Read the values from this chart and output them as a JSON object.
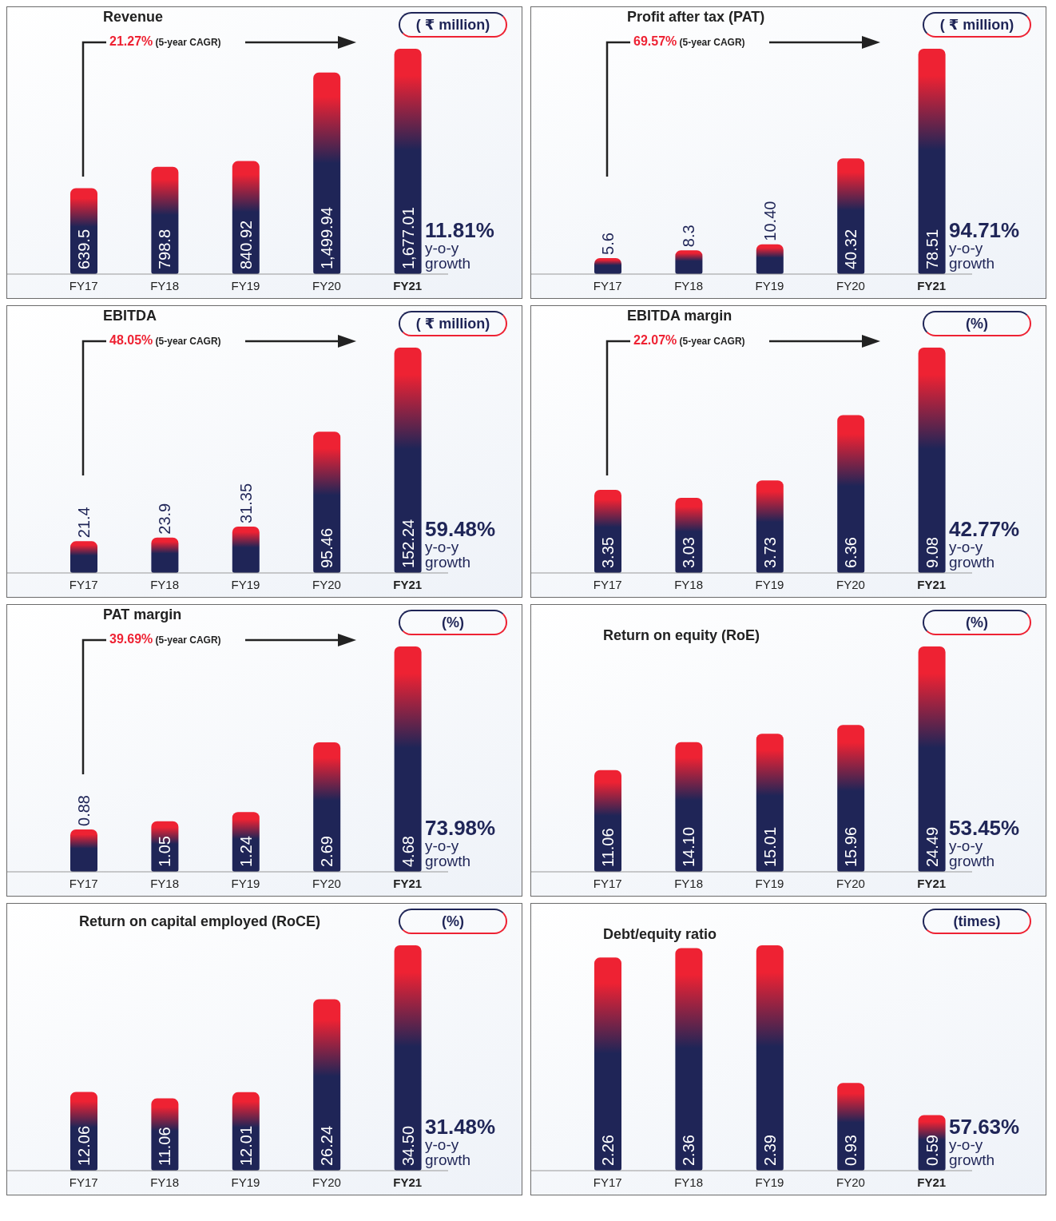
{
  "chart_data": [
    {
      "type": "bar",
      "title": "Revenue",
      "categories": [
        "FY17",
        "FY18",
        "FY19",
        "FY20",
        "FY21"
      ],
      "series": [
        {
          "color": "#1f2557",
          "values": [
            639.5,
            798.8,
            840.92,
            1499.94,
            1677.01
          ],
          "value_labels": [
            "639.5",
            "798.8",
            "840.92",
            "1,499.94",
            "1,677.01"
          ]
        }
      ],
      "annotations": [
        "( ₹ million)",
        "11.81% y-o-y growth",
        "21.27% (5-year CAGR)"
      ]
    },
    {
      "type": "bar",
      "title": "Profit after tax (PAT)",
      "categories": [
        "FY17",
        "FY18",
        "FY19",
        "FY20",
        "FY21"
      ],
      "series": [
        {
          "color": "#1f2557",
          "values": [
            5.6,
            8.3,
            10.4,
            40.32,
            78.51
          ],
          "value_labels": [
            "5.6",
            "8.3",
            "10.40",
            "40.32",
            "78.51"
          ]
        }
      ],
      "annotations": [
        "( ₹ million)",
        "94.71% y-o-y growth",
        "69.57% (5-year CAGR)"
      ]
    },
    {
      "type": "bar",
      "title": "EBITDA",
      "categories": [
        "FY17",
        "FY18",
        "FY19",
        "FY20",
        "FY21"
      ],
      "series": [
        {
          "color": "#1f2557",
          "values": [
            21.4,
            23.9,
            31.35,
            95.46,
            152.24
          ],
          "value_labels": [
            "21.4",
            "23.9",
            "31.35",
            "95.46",
            "152.24"
          ]
        }
      ],
      "annotations": [
        "( ₹ million)",
        "59.48% y-o-y growth",
        "48.05% (5-year CAGR)"
      ]
    },
    {
      "type": "bar",
      "title": "EBITDA margin",
      "categories": [
        "FY17",
        "FY18",
        "FY19",
        "FY20",
        "FY21"
      ],
      "series": [
        {
          "color": "#1f2557",
          "values": [
            3.35,
            3.03,
            3.73,
            6.36,
            9.08
          ],
          "value_labels": [
            "3.35",
            "3.03",
            "3.73",
            "6.36",
            "9.08"
          ]
        }
      ],
      "annotations": [
        "(%)",
        "42.77% y-o-y growth",
        "22.07% (5-year CAGR)"
      ]
    },
    {
      "type": "bar",
      "title": "PAT margin",
      "categories": [
        "FY17",
        "FY18",
        "FY19",
        "FY20",
        "FY21"
      ],
      "series": [
        {
          "color": "#1f2557",
          "values": [
            0.88,
            1.05,
            1.24,
            2.69,
            4.68
          ],
          "value_labels": [
            "0.88",
            "1.05",
            "1.24",
            "2.69",
            "4.68"
          ]
        }
      ],
      "annotations": [
        "(%)",
        "73.98% y-o-y growth",
        "39.69% (5-year CAGR)"
      ]
    },
    {
      "type": "bar",
      "title": "Return on equity (RoE)",
      "categories": [
        "FY17",
        "FY18",
        "FY19",
        "FY20",
        "FY21"
      ],
      "series": [
        {
          "color": "#1f2557",
          "values": [
            11.06,
            14.1,
            15.01,
            15.96,
            24.49
          ],
          "value_labels": [
            "11.06",
            "14.10",
            "15.01",
            "15.96",
            "24.49"
          ]
        }
      ],
      "annotations": [
        "(%)",
        "53.45% y-o-y growth"
      ]
    },
    {
      "type": "bar",
      "title": "Return on capital employed (RoCE)",
      "categories": [
        "FY17",
        "FY18",
        "FY19",
        "FY20",
        "FY21"
      ],
      "series": [
        {
          "color": "#1f2557",
          "values": [
            12.06,
            11.06,
            12.01,
            26.24,
            34.5
          ],
          "value_labels": [
            "12.06",
            "11.06",
            "12.01",
            "26.24",
            "34.50"
          ]
        }
      ],
      "annotations": [
        "(%)",
        "31.48% y-o-y growth"
      ]
    },
    {
      "type": "bar",
      "title": "Debt/equity ratio",
      "categories": [
        "FY17",
        "FY18",
        "FY19",
        "FY20",
        "FY21"
      ],
      "series": [
        {
          "color": "#1f2557",
          "values": [
            2.26,
            2.36,
            2.39,
            0.93,
            0.59
          ],
          "value_labels": [
            "2.26",
            "2.36",
            "2.39",
            "0.93",
            "0.59"
          ]
        }
      ],
      "annotations": [
        "(times)",
        "57.63% y-o-y growth"
      ]
    }
  ]
}
